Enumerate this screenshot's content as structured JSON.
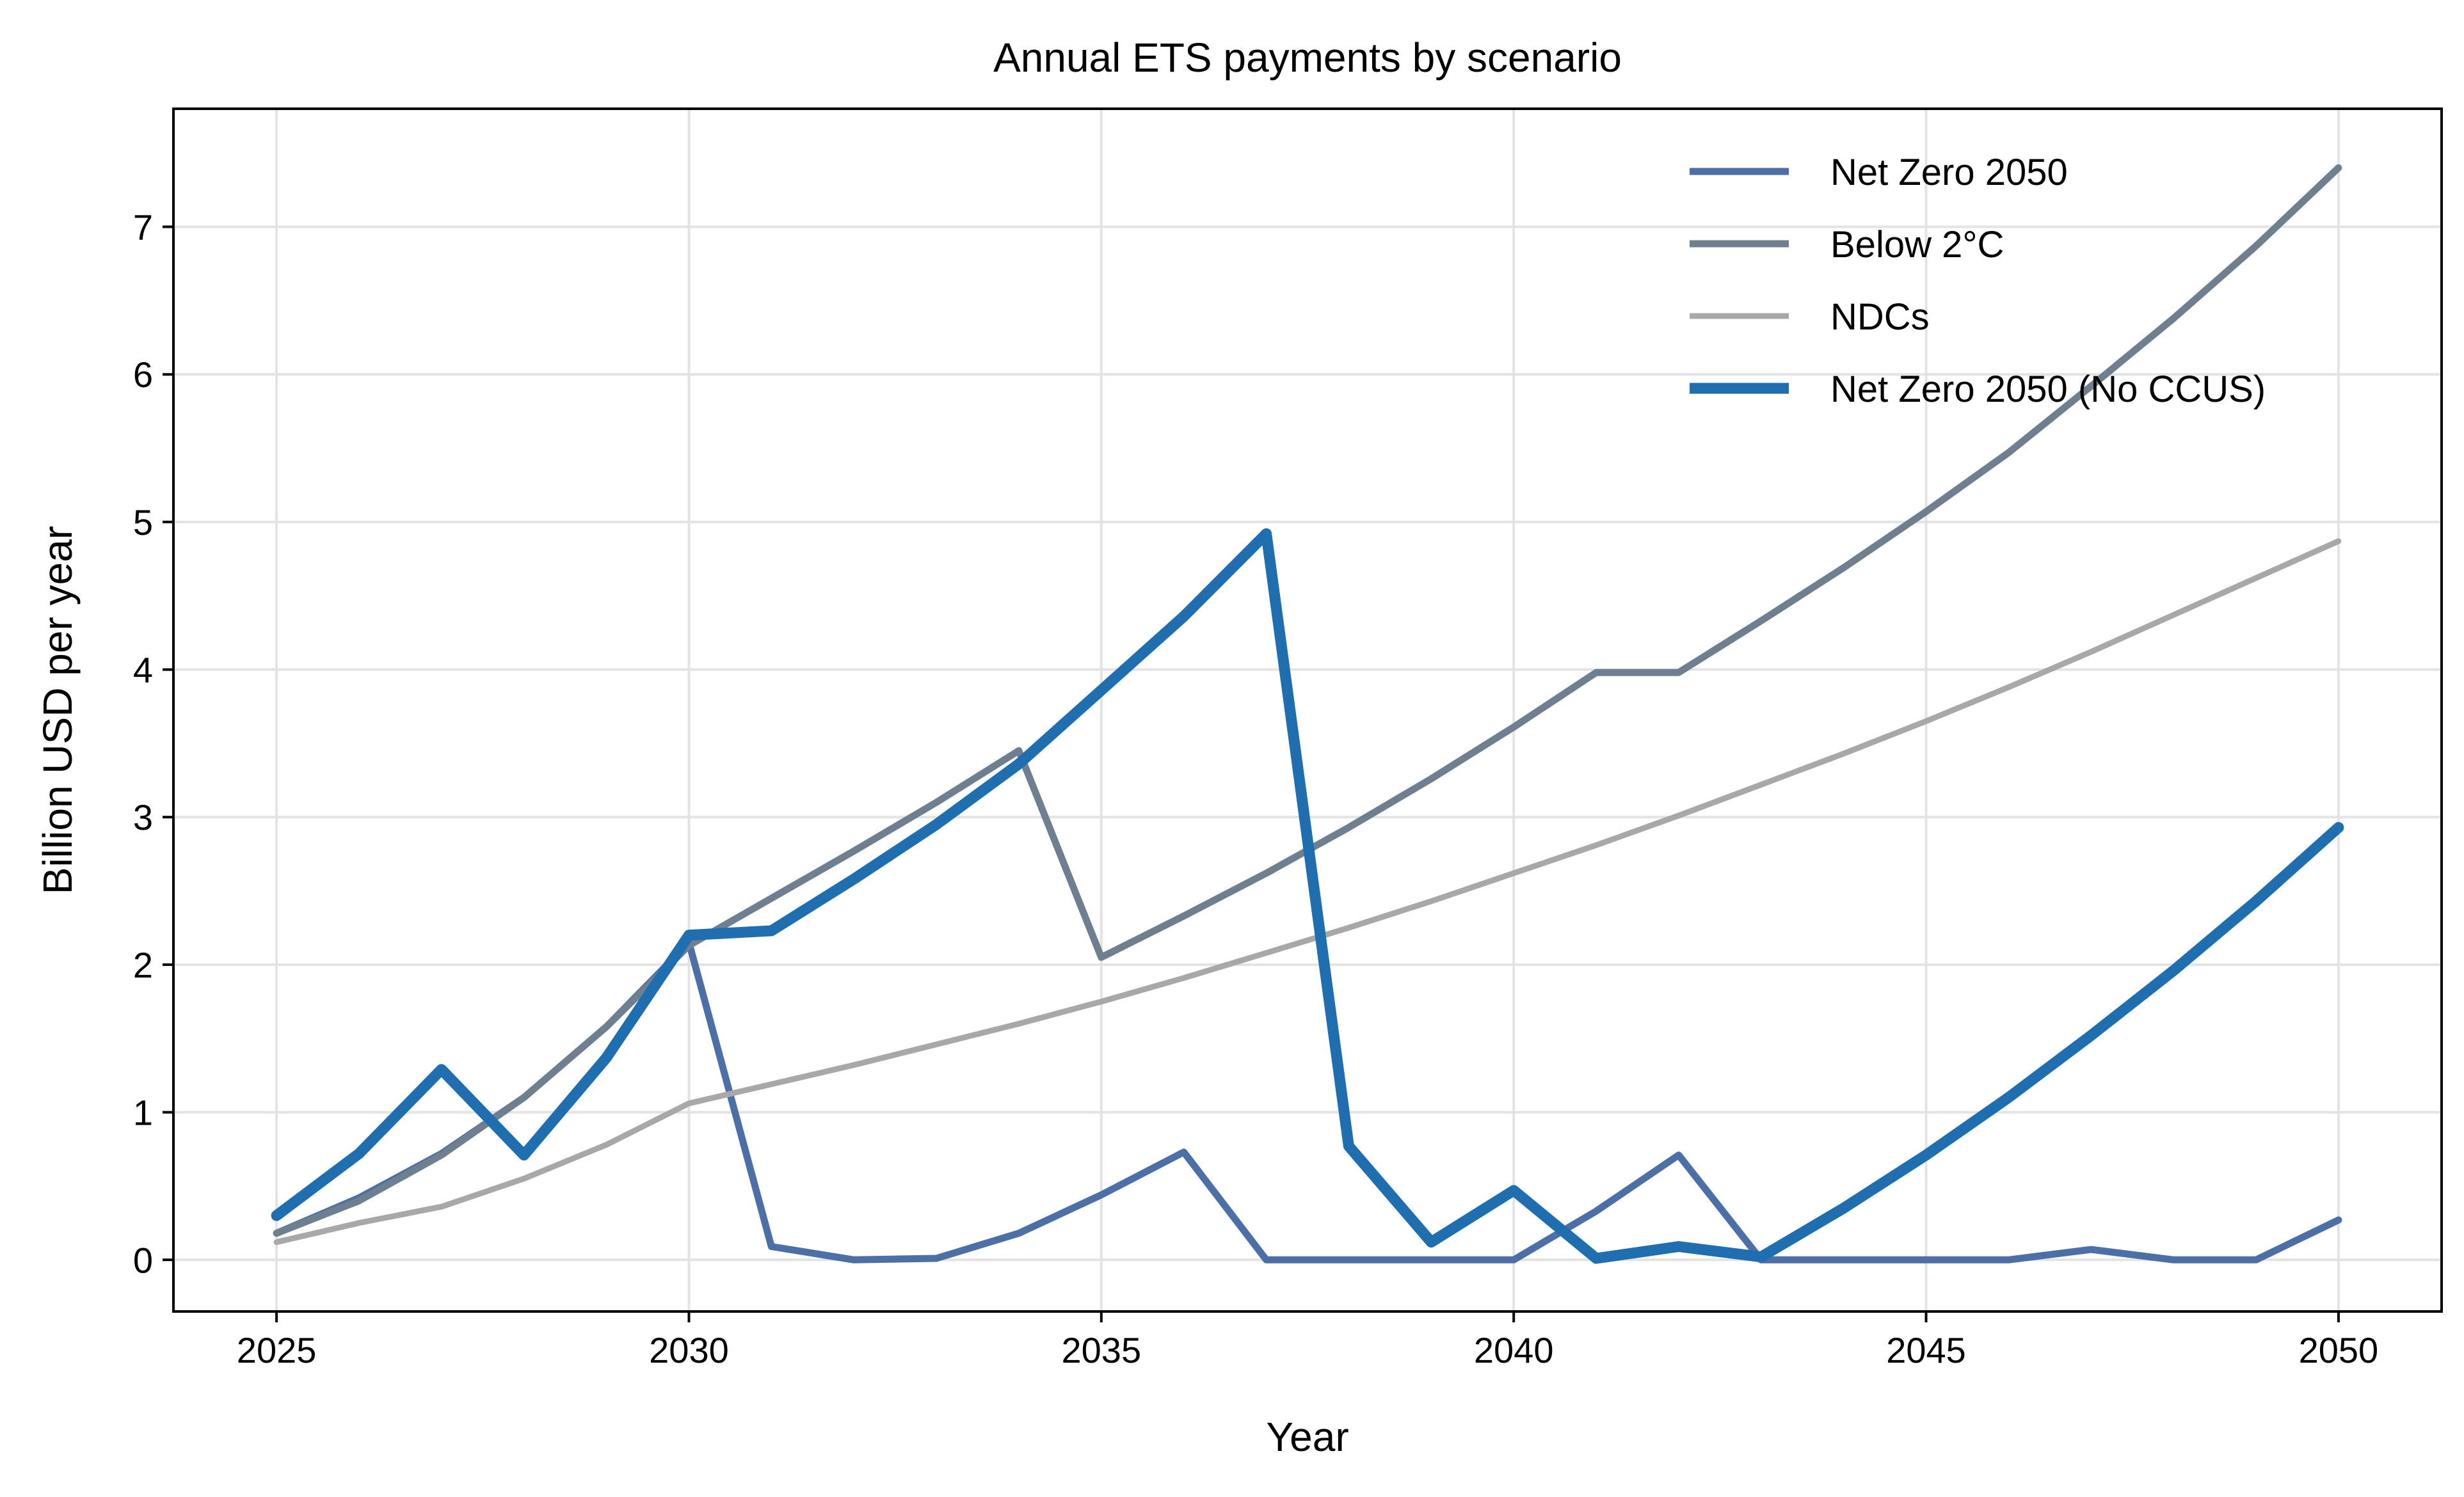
{
  "chart_data": {
    "type": "line",
    "title": "Annual ETS payments by scenario",
    "xlabel": "Year",
    "ylabel": "Billion USD per year",
    "xlim": [
      2023.75,
      2051.25
    ],
    "ylim": [
      -0.35,
      7.8
    ],
    "xticks": [
      2025,
      2030,
      2035,
      2040,
      2045,
      2050
    ],
    "yticks": [
      0,
      1,
      2,
      3,
      4,
      5,
      6,
      7
    ],
    "grid": true,
    "legend_position": "top-right",
    "x": [
      2025,
      2026,
      2027,
      2028,
      2029,
      2030,
      2031,
      2032,
      2033,
      2034,
      2035,
      2036,
      2037,
      2038,
      2039,
      2040,
      2041,
      2042,
      2043,
      2044,
      2045,
      2046,
      2047,
      2048,
      2049,
      2050
    ],
    "series": [
      {
        "name": "Net Zero 2050",
        "color": "#4c6fa8",
        "width": 11,
        "values": [
          0.18,
          0.42,
          0.72,
          1.1,
          1.58,
          2.15,
          0.09,
          0.0,
          0.01,
          0.18,
          0.44,
          0.73,
          0.0,
          0.0,
          0.0,
          0.0,
          0.33,
          0.71,
          0.0,
          0.0,
          0.0,
          0.0,
          0.07,
          0.0,
          0.0,
          0.27
        ]
      },
      {
        "name": "Below 2°C",
        "color": "#6e7f8f",
        "width": 11,
        "values": [
          0.18,
          0.4,
          0.71,
          1.1,
          1.58,
          2.13,
          2.45,
          2.77,
          3.1,
          3.45,
          2.05,
          2.33,
          2.62,
          2.93,
          3.26,
          3.61,
          3.98,
          3.98,
          4.33,
          4.69,
          5.07,
          5.47,
          5.92,
          6.38,
          6.87,
          7.4
        ]
      },
      {
        "name": "NDCs",
        "color": "#a8a8a8",
        "width": 9,
        "values": [
          0.12,
          0.25,
          0.36,
          0.55,
          0.78,
          1.06,
          1.19,
          1.32,
          1.46,
          1.6,
          1.75,
          1.91,
          2.08,
          2.25,
          2.43,
          2.62,
          2.81,
          3.01,
          3.22,
          3.43,
          3.65,
          3.88,
          4.12,
          4.37,
          4.62,
          4.87
        ]
      },
      {
        "name": "Net Zero 2050 (No CCUS)",
        "color": "#1f6fb0",
        "width": 17,
        "values": [
          0.3,
          0.72,
          1.29,
          0.71,
          1.37,
          2.2,
          2.23,
          2.58,
          2.95,
          3.36,
          3.86,
          4.36,
          4.92,
          0.77,
          0.12,
          0.47,
          0.01,
          0.09,
          0.02,
          0.35,
          0.71,
          1.1,
          1.52,
          1.96,
          2.43,
          2.93
        ]
      }
    ]
  }
}
